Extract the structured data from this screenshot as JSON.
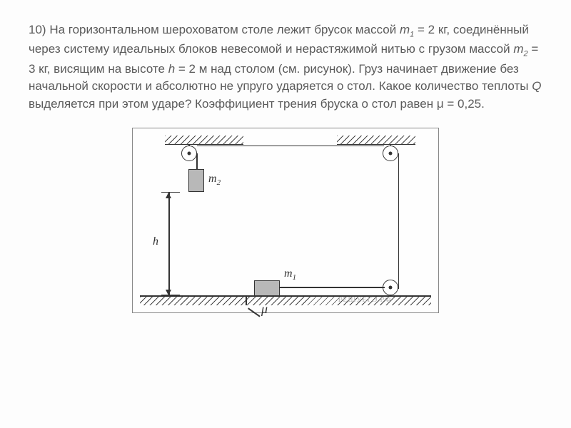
{
  "problem": {
    "number": "10)",
    "text_line1": "На горизонтальном шероховатом столе лежит брусок массой ",
    "m1_var": "m",
    "m1_sub": "1",
    "m1_eq": " = 2",
    "text_line2": "кг, соединённый через систему идеальных блоков невесомой и нерастяжимой нитью с грузом массой ",
    "m2_var": "m",
    "m2_sub": "2",
    "m2_eq": " = 3 кг, висящим на высоте ",
    "h_var": "h",
    "h_eq": " = 2",
    "text_line3": "м над столом (см. рисунок). Груз начинает движение без начальной скорости и абсолютно не упруго ударяется о стол. Какое количество теплоты ",
    "Q_var": "Q",
    "text_line4": " выделяется при этом ударе? Коэффициент трения бруска о стол равен μ = 0,25."
  },
  "diagram": {
    "m1_label": "m",
    "m1_sub": "1",
    "m2_label": "m",
    "m2_sub": "2",
    "h_label": "h",
    "mu_label": "μ",
    "watermark": "РЕШУЕГЭ.РФ",
    "colors": {
      "stroke": "#333333",
      "mass_fill": "#b8b8b8",
      "text": "#5a5a5a",
      "bg": "#fdfdfd"
    }
  }
}
